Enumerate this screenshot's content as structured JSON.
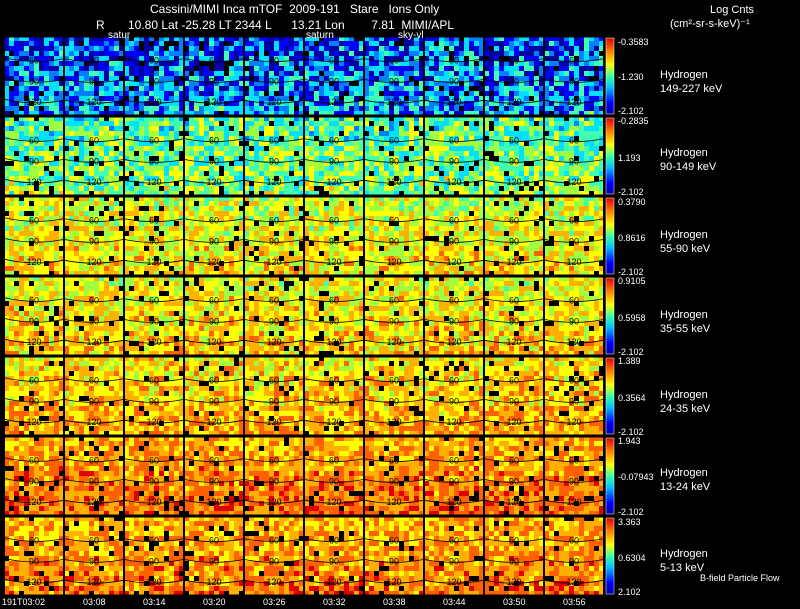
{
  "header": {
    "title_line1": "Cassini/MIMI Inca mTOF  2009-191   Stare   Ions Only",
    "title_line2": "R       10.80 Lat -25.28 LT 2344 L      13.21 Lon        7.81  MIMI/APL",
    "units_line1": "Log Cnts",
    "units_line2": "(cm²-sr-s-keV)⁻¹"
  },
  "frame_labels": [
    "satur",
    "saturn",
    "sky-vl"
  ],
  "footnote": "B-field Particle Flow",
  "chart_data": {
    "type": "heatmap",
    "title": "Cassini/MIMI Inca mTOF 2009-191 Stare Ions Only",
    "x_ticks": [
      "191T03:02",
      "03:08",
      "03:14",
      "03:20",
      "03:26",
      "03:32",
      "03:38",
      "03:44",
      "03:50",
      "03:56"
    ],
    "contour_labels": [
      "60",
      "90",
      "120"
    ],
    "colormap": [
      "#0000a0",
      "#0000ff",
      "#0080ff",
      "#00e0ff",
      "#40ffb0",
      "#a0ff40",
      "#ffff00",
      "#ffb000",
      "#ff6000",
      "#e00000"
    ],
    "rows": [
      {
        "species": "Hydrogen",
        "energy": "149-227 keV",
        "cb_max": "-0.3583",
        "cb_mid": "-1.230",
        "cb_min": "-2.102",
        "mean_level": 0.25,
        "spread": 0.22
      },
      {
        "species": "Hydrogen",
        "energy": "90-149 keV",
        "cb_max": "-0.2835",
        "cb_mid": "1.193",
        "cb_min": "-2.102",
        "mean_level": 0.5,
        "spread": 0.18
      },
      {
        "species": "Hydrogen",
        "energy": "55-90 keV",
        "cb_max": "0.3790",
        "cb_mid": "0.8616",
        "cb_min": "-2.102",
        "mean_level": 0.65,
        "spread": 0.15
      },
      {
        "species": "Hydrogen",
        "energy": "35-55 keV",
        "cb_max": "0.9105",
        "cb_mid": "0.5958",
        "cb_min": "-2.102",
        "mean_level": 0.68,
        "spread": 0.15
      },
      {
        "species": "Hydrogen",
        "energy": "24-35 keV",
        "cb_max": "1.389",
        "cb_mid": "0.3564",
        "cb_min": "-2.102",
        "mean_level": 0.72,
        "spread": 0.14
      },
      {
        "species": "Hydrogen",
        "energy": "13-24 keV",
        "cb_max": "1.943",
        "cb_mid": "-0.07943",
        "cb_min": "-2.102",
        "mean_level": 0.8,
        "spread": 0.12
      },
      {
        "species": "Hydrogen",
        "energy": "5-13 keV",
        "cb_max": "3.363",
        "cb_mid": "0.6304",
        "cb_min": "2.102",
        "mean_level": 0.78,
        "spread": 0.13
      }
    ]
  }
}
